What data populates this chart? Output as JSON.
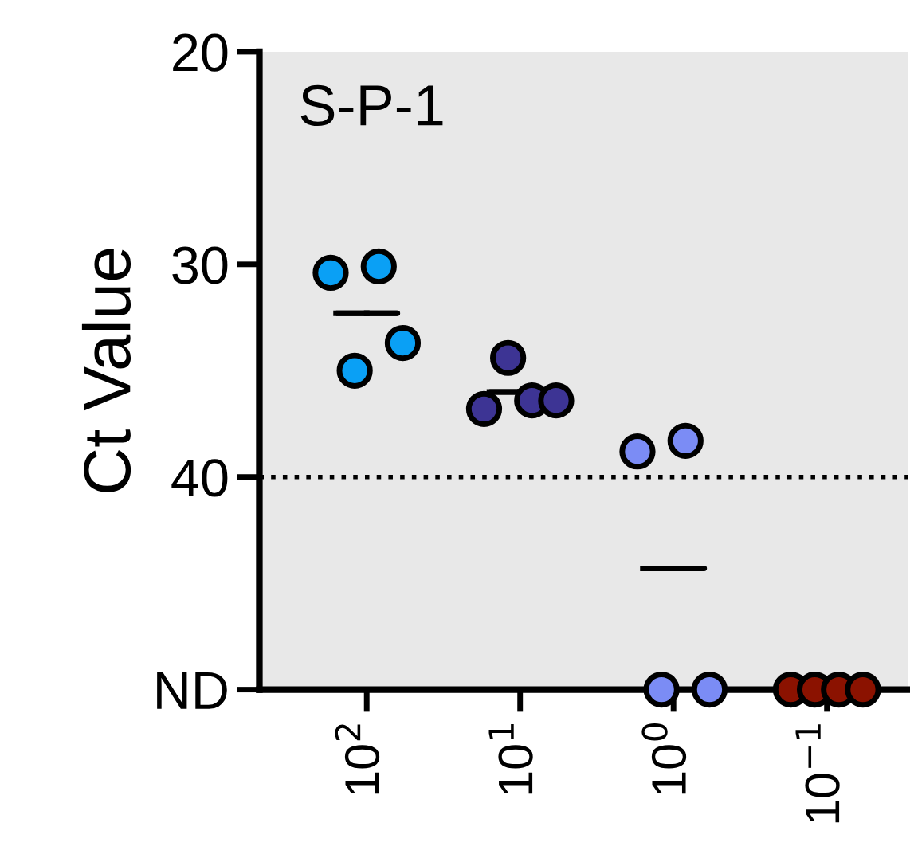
{
  "chart_data": {
    "type": "scatter",
    "title": "S-P-1",
    "ylabel": "Ct Value",
    "categories": [
      "10$^{2}$",
      "10$^{1}$",
      "10$^{0}$",
      "10$^{−1}$"
    ],
    "ylim": [
      50,
      20
    ],
    "yticks": [
      20,
      30,
      40,
      {
        "value": 50,
        "label": "ND"
      }
    ],
    "grid": false,
    "legend": false,
    "ref_lines": [
      {
        "axis": "y",
        "value": 40,
        "line_style": "dotted",
        "color": "#000000"
      }
    ],
    "series": [
      {
        "type": "scatter",
        "marker": "circle",
        "color": "#0aa0f5",
        "x": [
          "10$^{2}$",
          "10$^{2}$",
          "10$^{2}$",
          "10$^{2}$"
        ],
        "values": [
          30.4,
          35.0,
          30.1,
          33.7
        ]
      },
      {
        "type": "scatter",
        "marker": "circle",
        "color": "#3d3494",
        "x": [
          "10$^{1}$",
          "10$^{1}$",
          "10$^{1}$",
          "10$^{1}$"
        ],
        "values": [
          36.8,
          34.4,
          36.4,
          36.4
        ]
      },
      {
        "type": "scatter",
        "marker": "circle",
        "color": "#7b8cf5",
        "x": [
          "10$^{0}$",
          "10$^{0}$",
          "10$^{0}$",
          "10$^{0}$"
        ],
        "values": [
          38.8,
          50,
          38.3,
          50
        ]
      },
      {
        "type": "scatter",
        "marker": "circle",
        "color": "#8b1200",
        "x": [
          "10$^{−1}$",
          "10$^{−1}$",
          "10$^{−1}$",
          "10$^{−1}$"
        ],
        "values": [
          50,
          50,
          50,
          50
        ]
      },
      {
        "type": "box",
        "color": "#000000",
        "boxes": [
          {
            "low": 32.3,
            "q1": 32.3,
            "median": 32.3,
            "q3": 32.3,
            "high": 32.3
          },
          {
            "low": 36.0,
            "q1": 36.0,
            "median": 36.0,
            "q3": 36.0,
            "high": 36.0
          },
          {
            "low": 44.3,
            "q1": 44.3,
            "median": 44.3,
            "q3": 44.3,
            "high": 44.3
          },
          null
        ]
      }
    ]
  }
}
